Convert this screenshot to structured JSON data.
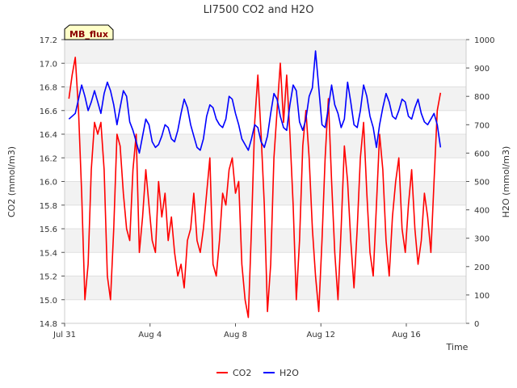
{
  "chart_data": {
    "type": "line",
    "title": "LI7500 CO2 and H2O",
    "badge": "MB_flux",
    "xlabel": "Time",
    "ylabel_left": "CO2 (mmol/m3)",
    "ylabel_right": "H2O (mmol/m3)",
    "x_range_days": [
      0,
      18.8
    ],
    "x_ticks": [
      {
        "day": 0,
        "label": "Jul 31"
      },
      {
        "day": 4,
        "label": "Aug 4"
      },
      {
        "day": 8,
        "label": "Aug 8"
      },
      {
        "day": 12,
        "label": "Aug 12"
      },
      {
        "day": 16,
        "label": "Aug 16"
      }
    ],
    "ylim_left": [
      14.8,
      17.2
    ],
    "yticks_left": [
      "14.8",
      "15.0",
      "15.2",
      "15.4",
      "15.6",
      "15.8",
      "16.0",
      "16.2",
      "16.4",
      "16.6",
      "16.8",
      "17.0",
      "17.2"
    ],
    "ylim_right": [
      0,
      1000
    ],
    "yticks_right": [
      "0",
      "100",
      "200",
      "300",
      "400",
      "500",
      "600",
      "700",
      "800",
      "900",
      "1000"
    ],
    "grid": "horizontal bands",
    "legend_position": "bottom-center",
    "series": [
      {
        "name": "CO2",
        "axis": "left",
        "color": "#ff0000",
        "x": [
          0.2,
          0.35,
          0.5,
          0.65,
          0.8,
          0.95,
          1.1,
          1.25,
          1.4,
          1.55,
          1.7,
          1.85,
          2.0,
          2.15,
          2.3,
          2.45,
          2.6,
          2.75,
          2.9,
          3.05,
          3.2,
          3.35,
          3.5,
          3.65,
          3.8,
          3.95,
          4.1,
          4.25,
          4.4,
          4.55,
          4.7,
          4.85,
          5.0,
          5.15,
          5.3,
          5.45,
          5.6,
          5.75,
          5.9,
          6.05,
          6.2,
          6.35,
          6.5,
          6.65,
          6.8,
          6.95,
          7.1,
          7.25,
          7.4,
          7.55,
          7.7,
          7.85,
          8.0,
          8.15,
          8.3,
          8.45,
          8.6,
          8.75,
          8.9,
          9.05,
          9.2,
          9.35,
          9.5,
          9.65,
          9.8,
          9.95,
          10.1,
          10.25,
          10.4,
          10.55,
          10.7,
          10.85,
          11.0,
          11.15,
          11.3,
          11.45,
          11.6,
          11.75,
          11.9,
          12.05,
          12.2,
          12.35,
          12.5,
          12.65,
          12.8,
          12.95,
          13.1,
          13.25,
          13.4,
          13.55,
          13.7,
          13.85,
          14.0,
          14.15,
          14.3,
          14.45,
          14.6,
          14.75,
          14.9,
          15.05,
          15.2,
          15.35,
          15.5,
          15.65,
          15.8,
          15.95,
          16.1,
          16.25,
          16.4,
          16.55,
          16.7,
          16.85,
          17.0,
          17.15,
          17.3,
          17.45,
          17.6
        ],
        "values": [
          16.7,
          16.9,
          17.05,
          16.6,
          15.9,
          15.0,
          15.3,
          16.1,
          16.5,
          16.4,
          16.5,
          16.1,
          15.2,
          15.0,
          15.6,
          16.4,
          16.3,
          15.9,
          15.6,
          15.5,
          16.1,
          16.4,
          15.4,
          15.7,
          16.1,
          15.8,
          15.5,
          15.4,
          16.0,
          15.7,
          15.9,
          15.5,
          15.7,
          15.4,
          15.2,
          15.3,
          15.1,
          15.5,
          15.6,
          15.9,
          15.5,
          15.4,
          15.6,
          15.9,
          16.2,
          15.3,
          15.2,
          15.5,
          15.9,
          15.8,
          16.1,
          16.2,
          15.9,
          16.0,
          15.3,
          15.0,
          14.85,
          15.6,
          16.5,
          16.9,
          16.4,
          15.8,
          14.9,
          15.3,
          16.2,
          16.6,
          17.0,
          16.5,
          16.9,
          16.4,
          15.8,
          15.0,
          15.5,
          16.3,
          16.6,
          16.2,
          15.6,
          15.2,
          14.9,
          15.5,
          16.2,
          16.7,
          16.0,
          15.4,
          15.0,
          15.6,
          16.3,
          16.0,
          15.5,
          15.1,
          15.6,
          16.2,
          16.5,
          15.9,
          15.4,
          15.2,
          15.8,
          16.4,
          16.1,
          15.5,
          15.2,
          15.7,
          16.0,
          16.2,
          15.6,
          15.4,
          15.8,
          16.1,
          15.6,
          15.3,
          15.5,
          15.9,
          15.7,
          15.4,
          16.0,
          16.6,
          16.75
        ]
      },
      {
        "name": "H2O",
        "axis": "right",
        "color": "#0000ff",
        "x": [
          0.2,
          0.35,
          0.5,
          0.65,
          0.8,
          0.95,
          1.1,
          1.25,
          1.4,
          1.55,
          1.7,
          1.85,
          2.0,
          2.15,
          2.3,
          2.45,
          2.6,
          2.75,
          2.9,
          3.05,
          3.2,
          3.35,
          3.5,
          3.65,
          3.8,
          3.95,
          4.1,
          4.25,
          4.4,
          4.55,
          4.7,
          4.85,
          5.0,
          5.15,
          5.3,
          5.45,
          5.6,
          5.75,
          5.9,
          6.05,
          6.2,
          6.35,
          6.5,
          6.65,
          6.8,
          6.95,
          7.1,
          7.25,
          7.4,
          7.55,
          7.7,
          7.85,
          8.0,
          8.15,
          8.3,
          8.45,
          8.6,
          8.75,
          8.9,
          9.05,
          9.2,
          9.35,
          9.5,
          9.65,
          9.8,
          9.95,
          10.1,
          10.25,
          10.4,
          10.55,
          10.7,
          10.85,
          11.0,
          11.15,
          11.3,
          11.45,
          11.6,
          11.75,
          11.9,
          12.05,
          12.2,
          12.35,
          12.5,
          12.65,
          12.8,
          12.95,
          13.1,
          13.25,
          13.4,
          13.55,
          13.7,
          13.85,
          14.0,
          14.15,
          14.3,
          14.45,
          14.6,
          14.75,
          14.9,
          15.05,
          15.2,
          15.35,
          15.5,
          15.65,
          15.8,
          15.95,
          16.1,
          16.25,
          16.4,
          16.55,
          16.7,
          16.85,
          17.0,
          17.15,
          17.3,
          17.45,
          17.6
        ],
        "values": [
          720,
          730,
          740,
          790,
          840,
          800,
          750,
          780,
          820,
          780,
          740,
          810,
          850,
          820,
          770,
          700,
          760,
          820,
          800,
          710,
          680,
          640,
          600,
          660,
          720,
          700,
          640,
          620,
          630,
          660,
          700,
          690,
          650,
          640,
          680,
          740,
          790,
          760,
          700,
          660,
          620,
          610,
          650,
          730,
          770,
          760,
          720,
          700,
          690,
          720,
          800,
          790,
          740,
          700,
          650,
          630,
          610,
          650,
          700,
          690,
          640,
          620,
          660,
          740,
          810,
          790,
          730,
          690,
          680,
          770,
          840,
          820,
          710,
          680,
          720,
          800,
          830,
          960,
          830,
          700,
          690,
          760,
          840,
          770,
          740,
          690,
          720,
          850,
          780,
          700,
          690,
          750,
          840,
          800,
          730,
          690,
          620,
          700,
          760,
          810,
          780,
          730,
          720,
          750,
          790,
          780,
          730,
          720,
          760,
          790,
          740,
          710,
          700,
          720,
          740,
          700,
          620
        ]
      }
    ]
  }
}
